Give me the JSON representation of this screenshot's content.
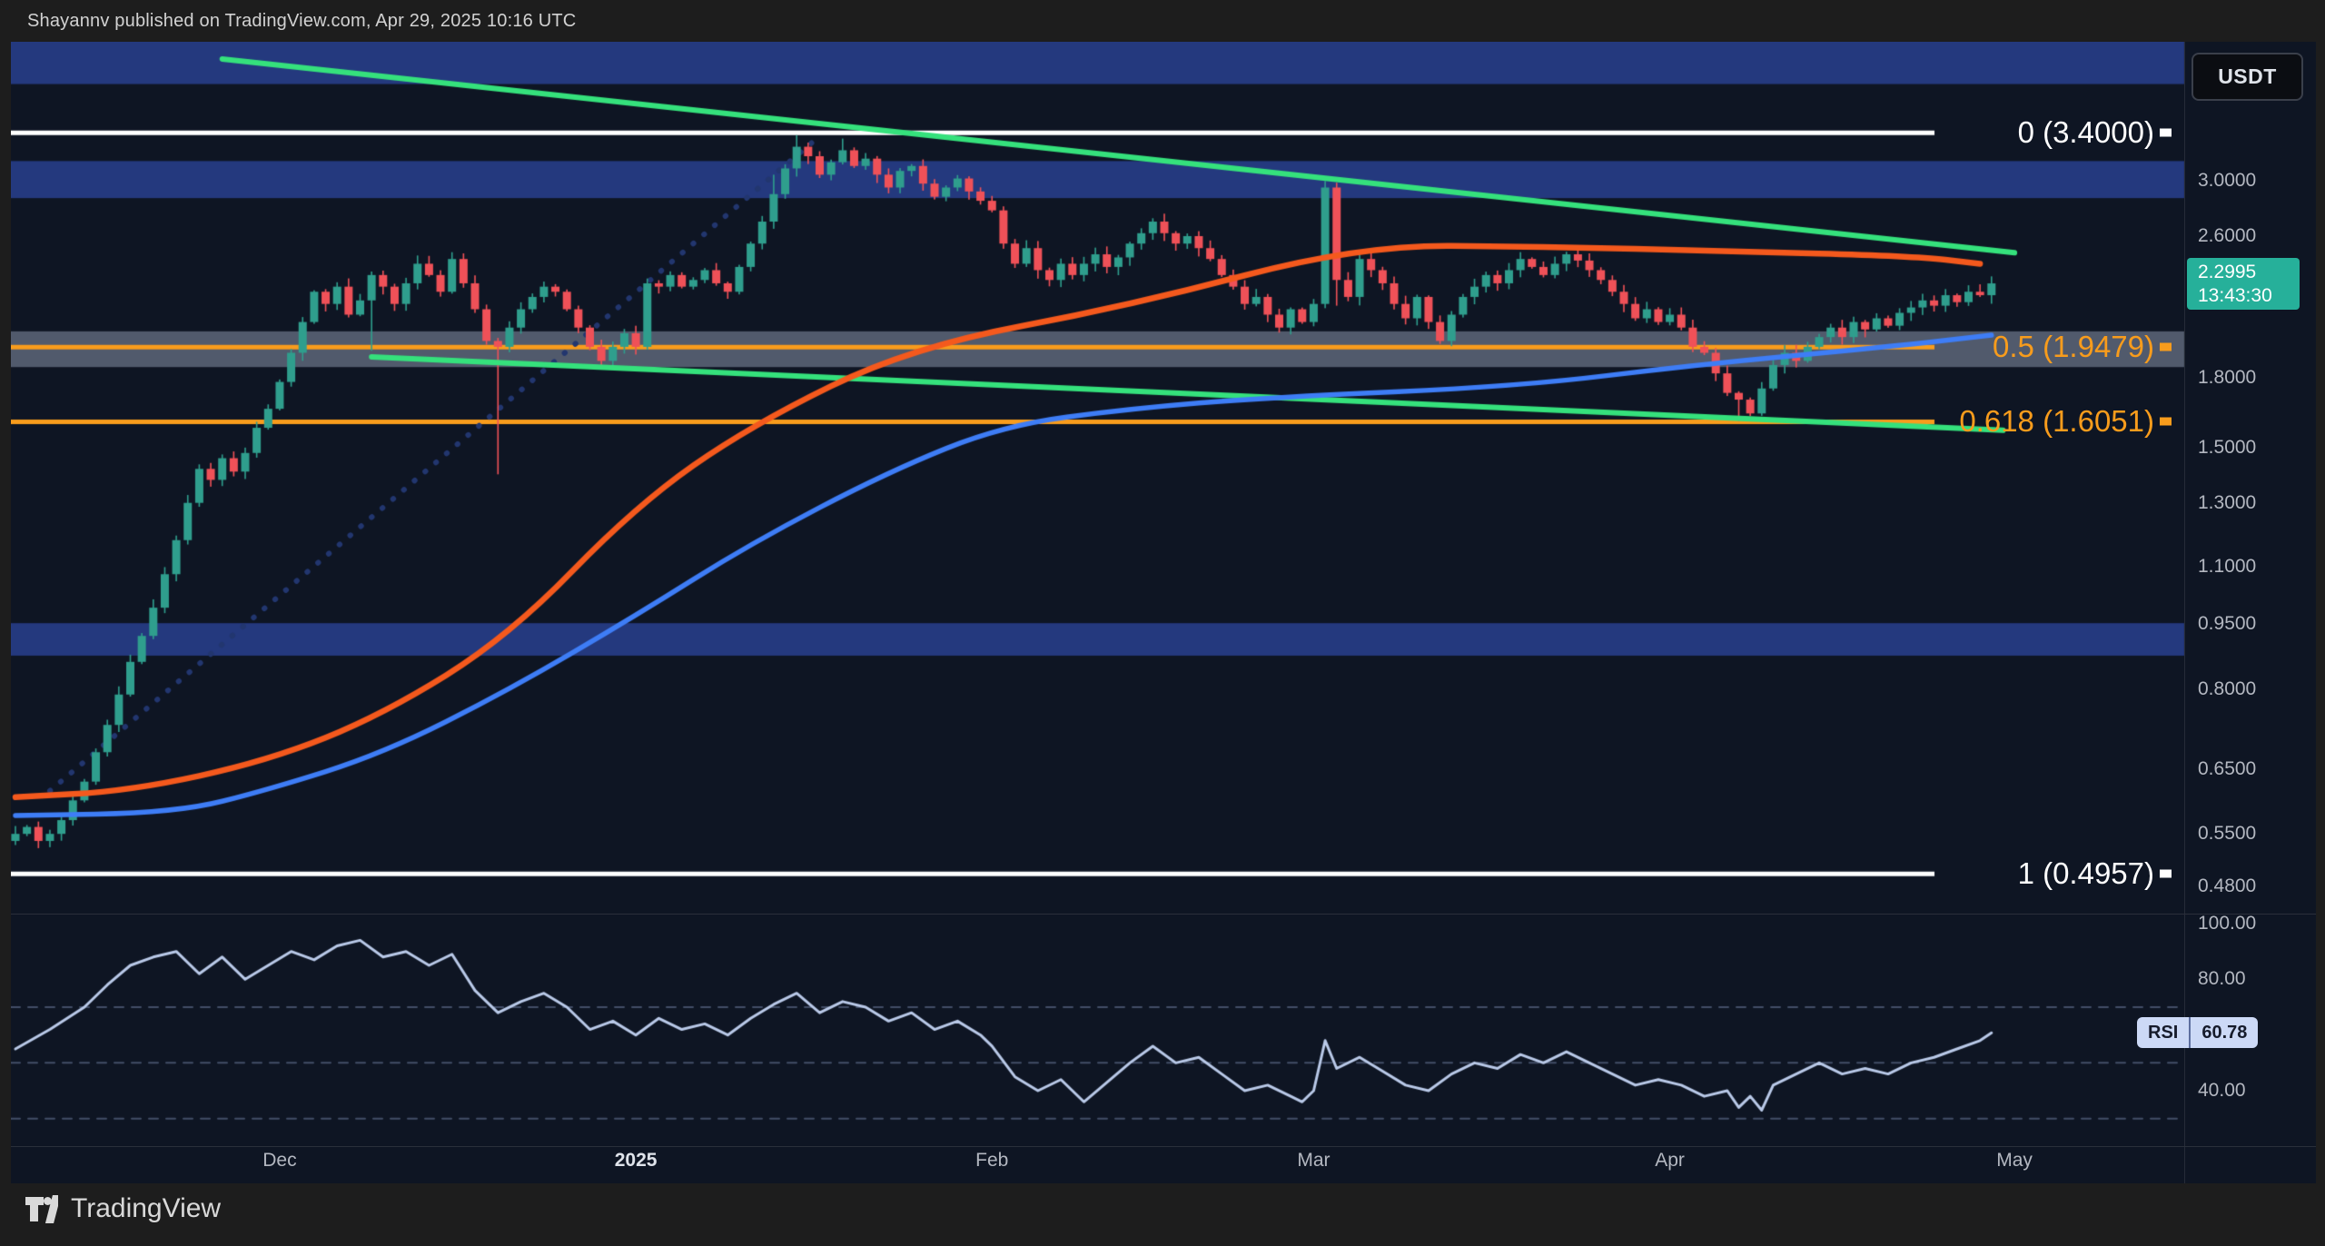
{
  "header": {
    "text": "Shayannv published on TradingView.com, Apr 29, 2025 10:16 UTC"
  },
  "footer": {
    "brand": "TradingView"
  },
  "toolbar": {
    "currency_label": "USDT"
  },
  "price_axis": {
    "last_price": "2.2995",
    "countdown": "13:43:30",
    "ticks": [
      {
        "label": "3.0000",
        "price": 3.0
      },
      {
        "label": "2.6000",
        "price": 2.6
      },
      {
        "label": "1.8000",
        "price": 1.8
      },
      {
        "label": "1.5000",
        "price": 1.5
      },
      {
        "label": "1.3000",
        "price": 1.3
      },
      {
        "label": "1.1000",
        "price": 1.1
      },
      {
        "label": "0.9500",
        "price": 0.95
      },
      {
        "label": "0.8000",
        "price": 0.8
      },
      {
        "label": "0.6500",
        "price": 0.65
      },
      {
        "label": "0.5500",
        "price": 0.55
      },
      {
        "label": "0.4800",
        "price": 0.48
      }
    ]
  },
  "rsi_axis": {
    "badge_label": "RSI",
    "badge_value": "60.78",
    "ticks": [
      {
        "label": "100.00",
        "value": 100
      },
      {
        "label": "80.00",
        "value": 80
      },
      {
        "label": "40.00",
        "value": 40
      }
    ]
  },
  "time_axis": {
    "labels": [
      {
        "label": "Dec",
        "day": 23,
        "bold": false
      },
      {
        "label": "2025",
        "day": 54,
        "bold": true
      },
      {
        "label": "Feb",
        "day": 85,
        "bold": false
      },
      {
        "label": "Mar",
        "day": 113,
        "bold": false
      },
      {
        "label": "Apr",
        "day": 144,
        "bold": false
      },
      {
        "label": "May",
        "day": 174,
        "bold": false
      }
    ]
  },
  "colors": {
    "bg_page": "#1d1d1d",
    "bg_chart": "#0e1523",
    "up": "#2f9e8d",
    "down": "#ef5158",
    "zone_blue": "#24397e",
    "zone_gray": "rgba(148,160,182,0.5)",
    "trend_green": "#35e17c",
    "ma_orange": "#f4591d",
    "ma_blue": "#3e7df6",
    "fib_orange": "#f89c1c",
    "fib_white": "#ffffff",
    "axis_text": "#b3b7c0",
    "badge_teal": "#26b09a",
    "rsi_line": "#b9c9e8",
    "rsi_guide": "rgba(110,125,160,0.55)",
    "dotted": "#22366f",
    "divider": "#2a2f3a"
  },
  "chart_data": {
    "type": "candlestick",
    "quote_currency": "USDT",
    "last_price": 2.2995,
    "rsi_last": 60.78,
    "price_scale": "log",
    "first_open": 0.54,
    "closes": [
      0.55,
      0.56,
      0.54,
      0.55,
      0.57,
      0.6,
      0.63,
      0.68,
      0.73,
      0.79,
      0.86,
      0.92,
      0.99,
      1.08,
      1.18,
      1.3,
      1.42,
      1.38,
      1.46,
      1.41,
      1.48,
      1.58,
      1.66,
      1.78,
      1.92,
      2.08,
      2.25,
      2.18,
      2.28,
      2.12,
      2.2,
      2.35,
      2.28,
      2.18,
      2.3,
      2.42,
      2.35,
      2.25,
      2.45,
      2.3,
      2.15,
      1.98,
      1.95,
      2.05,
      2.15,
      2.22,
      2.28,
      2.25,
      2.15,
      2.05,
      1.95,
      1.88,
      1.95,
      2.02,
      1.95,
      2.3,
      2.28,
      2.35,
      2.28,
      2.32,
      2.38,
      2.3,
      2.25,
      2.4,
      2.55,
      2.7,
      2.9,
      3.1,
      3.28,
      3.2,
      3.05,
      3.15,
      3.25,
      3.12,
      3.18,
      3.05,
      2.95,
      3.08,
      3.12,
      2.98,
      2.88,
      2.95,
      3.02,
      2.92,
      2.85,
      2.78,
      2.55,
      2.42,
      2.52,
      2.38,
      2.32,
      2.42,
      2.35,
      2.42,
      2.48,
      2.4,
      2.46,
      2.55,
      2.62,
      2.7,
      2.62,
      2.55,
      2.6,
      2.52,
      2.45,
      2.35,
      2.28,
      2.18,
      2.22,
      2.12,
      2.05,
      2.15,
      2.08,
      2.18,
      2.95,
      2.32,
      2.22,
      2.45,
      2.38,
      2.3,
      2.18,
      2.1,
      2.22,
      2.08,
      1.98,
      2.12,
      2.22,
      2.28,
      2.35,
      2.3,
      2.38,
      2.45,
      2.4,
      2.35,
      2.42,
      2.48,
      2.44,
      2.38,
      2.32,
      2.25,
      2.18,
      2.1,
      2.15,
      2.08,
      2.12,
      2.05,
      1.95,
      1.92,
      1.82,
      1.73,
      1.7,
      1.64,
      1.75,
      1.86,
      1.92,
      1.88,
      1.95,
      2.0,
      2.05,
      2.0,
      2.08,
      2.04,
      2.1,
      2.06,
      2.13,
      2.16,
      2.2,
      2.17,
      2.23,
      2.19,
      2.25,
      2.23,
      2.2995
    ],
    "wick_overrides": {
      "31": {
        "low": 1.93
      },
      "42": {
        "low": 1.4
      },
      "66": {
        "high": 3.05
      },
      "68": {
        "high": 3.38
      },
      "72": {
        "high": 3.35
      },
      "114": {
        "high": 3.0
      },
      "115": {
        "low": 2.17
      },
      "150": {
        "low": 1.607
      },
      "152": {
        "low": 1.63
      }
    },
    "fib_levels": [
      {
        "label": "0 (3.4000)",
        "price": 3.4,
        "color": "#ffffff"
      },
      {
        "label": "0.5 (1.9479)",
        "price": 1.9479,
        "color": "#f89c1c"
      },
      {
        "label": "0.618 (1.6051)",
        "price": 1.6051,
        "color": "#f89c1c"
      },
      {
        "label": "1 (0.4957)",
        "price": 0.4957,
        "color": "#ffffff"
      }
    ],
    "zones_blue": [
      [
        4.31,
        3.86
      ],
      [
        3.16,
        2.87
      ],
      [
        0.951,
        0.874
      ]
    ],
    "zone_gray": [
      2.03,
      1.85
    ],
    "trendlines": [
      {
        "name": "upper-descending",
        "d1": 18,
        "p1": 4.12,
        "d2": 174,
        "p2": 2.49
      },
      {
        "name": "lower-descending",
        "d1": 31,
        "p1": 1.9,
        "d2": 173,
        "p2": 1.57
      }
    ],
    "dotted_line": {
      "d1": 3,
      "p1": 0.615,
      "d2": 69.5,
      "p2": 3.33
    },
    "ma_orange": [
      [
        0,
        0.605
      ],
      [
        10,
        0.615
      ],
      [
        22,
        0.665
      ],
      [
        32,
        0.75
      ],
      [
        43,
        0.92
      ],
      [
        54,
        1.29
      ],
      [
        64,
        1.59
      ],
      [
        78,
        1.95
      ],
      [
        97,
        2.17
      ],
      [
        117,
        2.54
      ],
      [
        133,
        2.53
      ],
      [
        149,
        2.5
      ],
      [
        165,
        2.47
      ],
      [
        171,
        2.42
      ]
    ],
    "ma_blue": [
      [
        0,
        0.577
      ],
      [
        14,
        0.581
      ],
      [
        22,
        0.617
      ],
      [
        32,
        0.678
      ],
      [
        43,
        0.8
      ],
      [
        54,
        0.97
      ],
      [
        64,
        1.17
      ],
      [
        76,
        1.41
      ],
      [
        86,
        1.59
      ],
      [
        97,
        1.66
      ],
      [
        109,
        1.71
      ],
      [
        131,
        1.76
      ],
      [
        146,
        1.86
      ],
      [
        163,
        1.95
      ],
      [
        172,
        2.01
      ]
    ],
    "rsi": {
      "guides": [
        70,
        50,
        30
      ],
      "points": [
        [
          0,
          55
        ],
        [
          3,
          62
        ],
        [
          6,
          70
        ],
        [
          8,
          78
        ],
        [
          10,
          85
        ],
        [
          12,
          88
        ],
        [
          14,
          90
        ],
        [
          16,
          82
        ],
        [
          18,
          88
        ],
        [
          20,
          80
        ],
        [
          22,
          85
        ],
        [
          24,
          90
        ],
        [
          26,
          87
        ],
        [
          28,
          92
        ],
        [
          30,
          94
        ],
        [
          32,
          88
        ],
        [
          34,
          90
        ],
        [
          36,
          85
        ],
        [
          38,
          89
        ],
        [
          40,
          76
        ],
        [
          42,
          68
        ],
        [
          44,
          72
        ],
        [
          46,
          75
        ],
        [
          48,
          70
        ],
        [
          50,
          62
        ],
        [
          52,
          65
        ],
        [
          54,
          60
        ],
        [
          56,
          66
        ],
        [
          58,
          62
        ],
        [
          60,
          64
        ],
        [
          62,
          60
        ],
        [
          64,
          66
        ],
        [
          66,
          71
        ],
        [
          68,
          75
        ],
        [
          70,
          68
        ],
        [
          72,
          72
        ],
        [
          74,
          70
        ],
        [
          76,
          65
        ],
        [
          78,
          68
        ],
        [
          80,
          62
        ],
        [
          82,
          65
        ],
        [
          84,
          60
        ],
        [
          85,
          56
        ],
        [
          87,
          45
        ],
        [
          89,
          40
        ],
        [
          91,
          44
        ],
        [
          93,
          36
        ],
        [
          95,
          43
        ],
        [
          97,
          50
        ],
        [
          99,
          56
        ],
        [
          101,
          50
        ],
        [
          103,
          52
        ],
        [
          105,
          46
        ],
        [
          107,
          40
        ],
        [
          109,
          42
        ],
        [
          111,
          38
        ],
        [
          112,
          36
        ],
        [
          113,
          40
        ],
        [
          114,
          58
        ],
        [
          115,
          48
        ],
        [
          117,
          52
        ],
        [
          119,
          47
        ],
        [
          121,
          42
        ],
        [
          123,
          40
        ],
        [
          125,
          46
        ],
        [
          127,
          50
        ],
        [
          129,
          48
        ],
        [
          131,
          53
        ],
        [
          133,
          50
        ],
        [
          135,
          54
        ],
        [
          137,
          50
        ],
        [
          139,
          46
        ],
        [
          141,
          42
        ],
        [
          143,
          44
        ],
        [
          145,
          42
        ],
        [
          147,
          38
        ],
        [
          149,
          40
        ],
        [
          150,
          34
        ],
        [
          151,
          38
        ],
        [
          152,
          33
        ],
        [
          153,
          42
        ],
        [
          155,
          46
        ],
        [
          157,
          50
        ],
        [
          159,
          46
        ],
        [
          161,
          48
        ],
        [
          163,
          46
        ],
        [
          165,
          50
        ],
        [
          167,
          52
        ],
        [
          169,
          55
        ],
        [
          171,
          58
        ],
        [
          172,
          60.78
        ]
      ]
    }
  }
}
